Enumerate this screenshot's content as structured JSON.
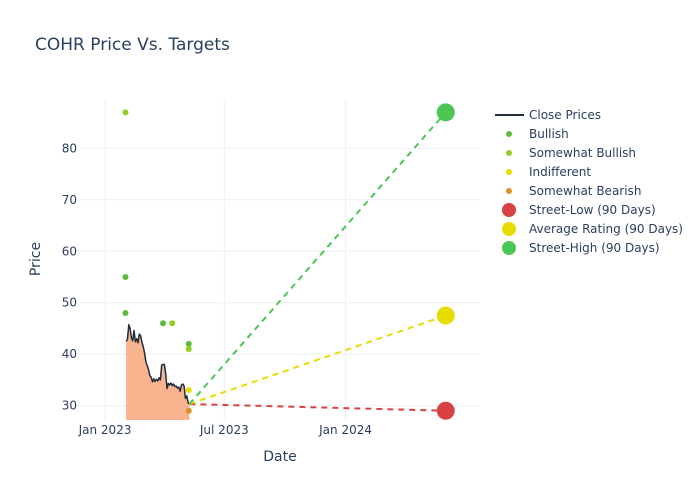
{
  "chart_data": {
    "type": "line",
    "title": "COHR Price Vs. Targets",
    "xlabel": "Date",
    "ylabel": "Price",
    "x_range": [
      "2022-11-24",
      "2024-07-23"
    ],
    "ylim": [
      27.2,
      89.4
    ],
    "x_ticks": [
      {
        "date": "2023-01-01",
        "label": "Jan 2023"
      },
      {
        "date": "2023-07-01",
        "label": "Jul 2023"
      },
      {
        "date": "2024-01-01",
        "label": "Jan 2024"
      }
    ],
    "y_ticks": [
      30,
      40,
      50,
      60,
      70,
      80
    ],
    "grid": true,
    "legend_position": "right",
    "close_prices": {
      "name": "Close Prices",
      "color": "#1f2d3d",
      "fill_color": "#f9b48f",
      "points": [
        [
          "2023-02-02",
          42.5
        ],
        [
          "2023-02-04",
          42.8
        ],
        [
          "2023-02-06",
          45.7
        ],
        [
          "2023-02-08",
          45.0
        ],
        [
          "2023-02-10",
          43.2
        ],
        [
          "2023-02-12",
          42.6
        ],
        [
          "2023-02-14",
          44.6
        ],
        [
          "2023-02-16",
          42.4
        ],
        [
          "2023-02-18",
          43.0
        ],
        [
          "2023-02-20",
          42.2
        ],
        [
          "2023-02-22",
          43.9
        ],
        [
          "2023-02-24",
          43.6
        ],
        [
          "2023-02-26",
          42.3
        ],
        [
          "2023-02-28",
          41.4
        ],
        [
          "2023-03-02",
          40.2
        ],
        [
          "2023-03-04",
          38.5
        ],
        [
          "2023-03-06",
          37.8
        ],
        [
          "2023-03-08",
          37.0
        ],
        [
          "2023-03-10",
          35.8
        ],
        [
          "2023-03-12",
          35.5
        ],
        [
          "2023-03-14",
          34.6
        ],
        [
          "2023-03-16",
          35.2
        ],
        [
          "2023-03-18",
          34.7
        ],
        [
          "2023-03-20",
          35.1
        ],
        [
          "2023-03-22",
          34.8
        ],
        [
          "2023-03-24",
          35.4
        ],
        [
          "2023-03-26",
          35.0
        ],
        [
          "2023-03-28",
          37.9
        ],
        [
          "2023-03-30",
          38.0
        ],
        [
          "2023-04-01",
          38.0
        ],
        [
          "2023-04-03",
          36.3
        ],
        [
          "2023-04-05",
          33.3
        ],
        [
          "2023-04-07",
          34.3
        ],
        [
          "2023-04-09",
          34.0
        ],
        [
          "2023-04-11",
          34.4
        ],
        [
          "2023-04-13",
          33.9
        ],
        [
          "2023-04-15",
          34.2
        ],
        [
          "2023-04-17",
          33.7
        ],
        [
          "2023-04-19",
          33.8
        ],
        [
          "2023-04-21",
          33.4
        ],
        [
          "2023-04-23",
          33.6
        ],
        [
          "2023-04-25",
          32.8
        ],
        [
          "2023-04-27",
          34.0
        ],
        [
          "2023-04-29",
          34.2
        ],
        [
          "2023-05-01",
          33.8
        ],
        [
          "2023-05-03",
          31.4
        ],
        [
          "2023-05-05",
          31.9
        ],
        [
          "2023-05-07",
          30.6
        ],
        [
          "2023-05-09",
          30.3
        ]
      ]
    },
    "ratings": [
      {
        "name": "Bullish",
        "color": "#5cbd3d",
        "points": [
          [
            "2023-02-01",
            55.0
          ],
          [
            "2023-02-01",
            48.0
          ],
          [
            "2023-03-30",
            46.0
          ],
          [
            "2023-05-08",
            42.0
          ]
        ]
      },
      {
        "name": "Somewhat Bullish",
        "color": "#93cc25",
        "points": [
          [
            "2023-02-01",
            87.0
          ],
          [
            "2023-04-13",
            46.0
          ],
          [
            "2023-05-08",
            41.0
          ]
        ]
      },
      {
        "name": "Indifferent",
        "color": "#e6dc00",
        "points": [
          [
            "2023-05-08",
            33.0
          ]
        ]
      },
      {
        "name": "Somewhat Bearish",
        "color": "#d9901f",
        "points": [
          [
            "2023-05-08",
            29.0
          ]
        ]
      }
    ],
    "targets": [
      {
        "name": "Street-Low (90 Days)",
        "color": "#d94242",
        "start": [
          "2023-05-09",
          30.3
        ],
        "end": [
          "2024-06-01",
          29.0
        ]
      },
      {
        "name": "Average Rating (90 Days)",
        "color": "#e6dc00",
        "start": [
          "2023-05-09",
          30.3
        ],
        "end": [
          "2024-06-01",
          47.5
        ]
      },
      {
        "name": "Street-High (90 Days)",
        "color": "#4bc553",
        "start": [
          "2023-05-09",
          30.3
        ],
        "end": [
          "2024-06-01",
          87.0
        ]
      }
    ]
  }
}
